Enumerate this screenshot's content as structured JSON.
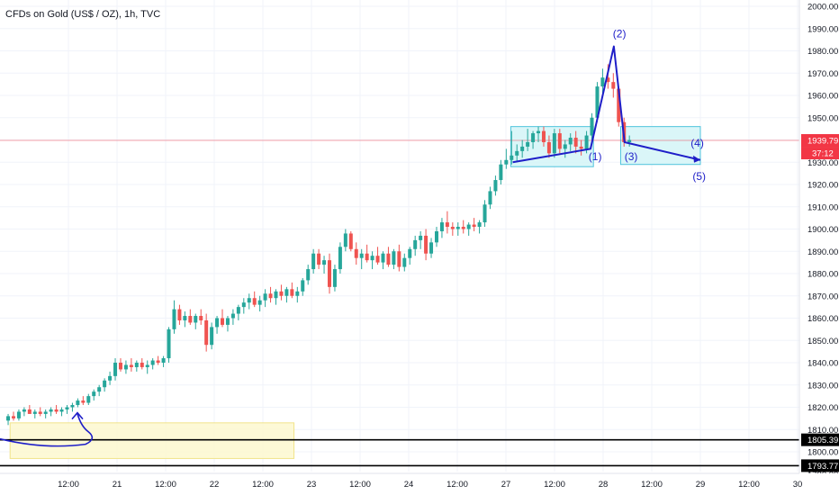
{
  "header": {
    "title": "CFDs on Gold (US$ / OZ), 1h, TVC"
  },
  "chart_data": {
    "type": "candlestick",
    "title": "CFDs on Gold (US$ / OZ), 1h, TVC",
    "y_ticks": [
      2000,
      1990,
      1980,
      1970,
      1960,
      1950,
      1940,
      1930,
      1920,
      1910,
      1900,
      1890,
      1880,
      1870,
      1860,
      1850,
      1840,
      1830,
      1820,
      1810,
      1800,
      1790
    ],
    "y_tick_labels": [
      "2000.00",
      "1990.00",
      "1980.00",
      "1970.00",
      "1960.00",
      "1950.00",
      "1940.00",
      "1930.00",
      "1920.00",
      "1910.00",
      "1900.00",
      "1890.00",
      "1880.00",
      "1870.00",
      "1860.00",
      "1850.00",
      "1840.00",
      "1830.00",
      "1820.00",
      "1810.00",
      "1800.00",
      "1790.00"
    ],
    "ylim": [
      1787,
      2008
    ],
    "x_ticks": [
      {
        "t": 0.5,
        "label": "12:00"
      },
      {
        "t": 1.0,
        "label": "21"
      },
      {
        "t": 1.5,
        "label": "12:00"
      },
      {
        "t": 2.0,
        "label": "22"
      },
      {
        "t": 2.5,
        "label": "12:00"
      },
      {
        "t": 3.0,
        "label": "23"
      },
      {
        "t": 3.5,
        "label": "12:00"
      },
      {
        "t": 4.0,
        "label": "24"
      },
      {
        "t": 4.5,
        "label": "12:00"
      },
      {
        "t": 5.0,
        "label": "27"
      },
      {
        "t": 5.5,
        "label": "12:00"
      },
      {
        "t": 6.0,
        "label": "28"
      },
      {
        "t": 6.5,
        "label": "12:00"
      },
      {
        "t": 7.0,
        "label": "29"
      },
      {
        "t": 7.5,
        "label": "12:00"
      },
      {
        "t": 8.0,
        "label": "30"
      },
      {
        "t": 8.5,
        "label": "12:00"
      }
    ],
    "price_levels": [
      {
        "value": 1939.79,
        "label": "1939.79",
        "color": "#f23645",
        "style": "thin"
      },
      {
        "value": 1805.39,
        "label": "1805.39",
        "color": "#000000",
        "style": "thick"
      },
      {
        "value": 1793.77,
        "label": "1793.77",
        "color": "#000000",
        "style": "thick"
      }
    ],
    "countdown_label": "37:12",
    "candles": [
      {
        "o": 1814,
        "h": 1817,
        "l": 1812,
        "c": 1816
      },
      {
        "o": 1816,
        "h": 1818,
        "l": 1814,
        "c": 1815
      },
      {
        "o": 1815,
        "h": 1819,
        "l": 1814,
        "c": 1818
      },
      {
        "o": 1818,
        "h": 1820,
        "l": 1816,
        "c": 1819
      },
      {
        "o": 1819,
        "h": 1821,
        "l": 1817,
        "c": 1817
      },
      {
        "o": 1817,
        "h": 1819,
        "l": 1815,
        "c": 1818
      },
      {
        "o": 1818,
        "h": 1820,
        "l": 1816,
        "c": 1817
      },
      {
        "o": 1817,
        "h": 1819,
        "l": 1815,
        "c": 1818
      },
      {
        "o": 1818,
        "h": 1820,
        "l": 1816,
        "c": 1819
      },
      {
        "o": 1819,
        "h": 1821,
        "l": 1817,
        "c": 1818
      },
      {
        "o": 1818,
        "h": 1820,
        "l": 1816,
        "c": 1819
      },
      {
        "o": 1819,
        "h": 1821,
        "l": 1817,
        "c": 1820
      },
      {
        "o": 1820,
        "h": 1822,
        "l": 1818,
        "c": 1821
      },
      {
        "o": 1821,
        "h": 1824,
        "l": 1820,
        "c": 1823
      },
      {
        "o": 1823,
        "h": 1825,
        "l": 1821,
        "c": 1822
      },
      {
        "o": 1822,
        "h": 1826,
        "l": 1821,
        "c": 1825
      },
      {
        "o": 1825,
        "h": 1828,
        "l": 1823,
        "c": 1827
      },
      {
        "o": 1827,
        "h": 1830,
        "l": 1825,
        "c": 1829
      },
      {
        "o": 1829,
        "h": 1833,
        "l": 1827,
        "c": 1832
      },
      {
        "o": 1832,
        "h": 1836,
        "l": 1830,
        "c": 1834
      },
      {
        "o": 1834,
        "h": 1842,
        "l": 1832,
        "c": 1840
      },
      {
        "o": 1840,
        "h": 1842,
        "l": 1836,
        "c": 1837
      },
      {
        "o": 1837,
        "h": 1841,
        "l": 1835,
        "c": 1839
      },
      {
        "o": 1839,
        "h": 1842,
        "l": 1836,
        "c": 1838
      },
      {
        "o": 1838,
        "h": 1841,
        "l": 1836,
        "c": 1840
      },
      {
        "o": 1840,
        "h": 1842,
        "l": 1837,
        "c": 1838
      },
      {
        "o": 1838,
        "h": 1841,
        "l": 1835,
        "c": 1839
      },
      {
        "o": 1839,
        "h": 1842,
        "l": 1837,
        "c": 1841
      },
      {
        "o": 1841,
        "h": 1843,
        "l": 1839,
        "c": 1840
      },
      {
        "o": 1840,
        "h": 1843,
        "l": 1838,
        "c": 1842
      },
      {
        "o": 1842,
        "h": 1856,
        "l": 1840,
        "c": 1855
      },
      {
        "o": 1855,
        "h": 1868,
        "l": 1853,
        "c": 1864
      },
      {
        "o": 1864,
        "h": 1866,
        "l": 1857,
        "c": 1859
      },
      {
        "o": 1859,
        "h": 1863,
        "l": 1856,
        "c": 1861
      },
      {
        "o": 1861,
        "h": 1864,
        "l": 1857,
        "c": 1858
      },
      {
        "o": 1858,
        "h": 1862,
        "l": 1855,
        "c": 1861
      },
      {
        "o": 1861,
        "h": 1864,
        "l": 1857,
        "c": 1859
      },
      {
        "o": 1859,
        "h": 1862,
        "l": 1845,
        "c": 1848
      },
      {
        "o": 1848,
        "h": 1858,
        "l": 1846,
        "c": 1856
      },
      {
        "o": 1856,
        "h": 1861,
        "l": 1853,
        "c": 1860
      },
      {
        "o": 1860,
        "h": 1864,
        "l": 1856,
        "c": 1857
      },
      {
        "o": 1857,
        "h": 1861,
        "l": 1854,
        "c": 1860
      },
      {
        "o": 1860,
        "h": 1864,
        "l": 1857,
        "c": 1862
      },
      {
        "o": 1862,
        "h": 1866,
        "l": 1859,
        "c": 1865
      },
      {
        "o": 1865,
        "h": 1869,
        "l": 1862,
        "c": 1867
      },
      {
        "o": 1867,
        "h": 1871,
        "l": 1864,
        "c": 1869
      },
      {
        "o": 1869,
        "h": 1872,
        "l": 1865,
        "c": 1866
      },
      {
        "o": 1866,
        "h": 1870,
        "l": 1863,
        "c": 1868
      },
      {
        "o": 1868,
        "h": 1873,
        "l": 1865,
        "c": 1871
      },
      {
        "o": 1871,
        "h": 1874,
        "l": 1867,
        "c": 1869
      },
      {
        "o": 1869,
        "h": 1873,
        "l": 1866,
        "c": 1872
      },
      {
        "o": 1872,
        "h": 1875,
        "l": 1868,
        "c": 1870
      },
      {
        "o": 1870,
        "h": 1874,
        "l": 1867,
        "c": 1873
      },
      {
        "o": 1873,
        "h": 1876,
        "l": 1869,
        "c": 1870
      },
      {
        "o": 1870,
        "h": 1874,
        "l": 1867,
        "c": 1872
      },
      {
        "o": 1872,
        "h": 1878,
        "l": 1870,
        "c": 1877
      },
      {
        "o": 1877,
        "h": 1884,
        "l": 1875,
        "c": 1882
      },
      {
        "o": 1882,
        "h": 1891,
        "l": 1880,
        "c": 1889
      },
      {
        "o": 1889,
        "h": 1891,
        "l": 1882,
        "c": 1884
      },
      {
        "o": 1884,
        "h": 1888,
        "l": 1880,
        "c": 1886
      },
      {
        "o": 1886,
        "h": 1889,
        "l": 1871,
        "c": 1874
      },
      {
        "o": 1874,
        "h": 1884,
        "l": 1872,
        "c": 1882
      },
      {
        "o": 1882,
        "h": 1894,
        "l": 1880,
        "c": 1892
      },
      {
        "o": 1892,
        "h": 1900,
        "l": 1890,
        "c": 1898
      },
      {
        "o": 1898,
        "h": 1899,
        "l": 1890,
        "c": 1891
      },
      {
        "o": 1891,
        "h": 1894,
        "l": 1884,
        "c": 1887
      },
      {
        "o": 1887,
        "h": 1891,
        "l": 1882,
        "c": 1889
      },
      {
        "o": 1889,
        "h": 1893,
        "l": 1885,
        "c": 1886
      },
      {
        "o": 1886,
        "h": 1890,
        "l": 1882,
        "c": 1888
      },
      {
        "o": 1888,
        "h": 1892,
        "l": 1884,
        "c": 1885
      },
      {
        "o": 1885,
        "h": 1890,
        "l": 1882,
        "c": 1889
      },
      {
        "o": 1889,
        "h": 1892,
        "l": 1883,
        "c": 1884
      },
      {
        "o": 1884,
        "h": 1891,
        "l": 1882,
        "c": 1890
      },
      {
        "o": 1890,
        "h": 1893,
        "l": 1881,
        "c": 1883
      },
      {
        "o": 1883,
        "h": 1889,
        "l": 1881,
        "c": 1887
      },
      {
        "o": 1887,
        "h": 1892,
        "l": 1884,
        "c": 1891
      },
      {
        "o": 1891,
        "h": 1897,
        "l": 1888,
        "c": 1895
      },
      {
        "o": 1895,
        "h": 1899,
        "l": 1891,
        "c": 1897
      },
      {
        "o": 1897,
        "h": 1900,
        "l": 1886,
        "c": 1889
      },
      {
        "o": 1889,
        "h": 1896,
        "l": 1887,
        "c": 1894
      },
      {
        "o": 1894,
        "h": 1901,
        "l": 1892,
        "c": 1899
      },
      {
        "o": 1899,
        "h": 1905,
        "l": 1896,
        "c": 1903
      },
      {
        "o": 1903,
        "h": 1908,
        "l": 1898,
        "c": 1901
      },
      {
        "o": 1901,
        "h": 1903,
        "l": 1897,
        "c": 1900
      },
      {
        "o": 1900,
        "h": 1903,
        "l": 1897,
        "c": 1901
      },
      {
        "o": 1901,
        "h": 1904,
        "l": 1898,
        "c": 1900
      },
      {
        "o": 1900,
        "h": 1903,
        "l": 1897,
        "c": 1902
      },
      {
        "o": 1902,
        "h": 1905,
        "l": 1899,
        "c": 1901
      },
      {
        "o": 1901,
        "h": 1904,
        "l": 1898,
        "c": 1903
      },
      {
        "o": 1903,
        "h": 1913,
        "l": 1901,
        "c": 1911
      },
      {
        "o": 1911,
        "h": 1919,
        "l": 1909,
        "c": 1917
      },
      {
        "o": 1917,
        "h": 1924,
        "l": 1915,
        "c": 1922
      },
      {
        "o": 1922,
        "h": 1931,
        "l": 1920,
        "c": 1929
      },
      {
        "o": 1929,
        "h": 1936,
        "l": 1927,
        "c": 1931
      },
      {
        "o": 1931,
        "h": 1944,
        "l": 1929,
        "c": 1933
      },
      {
        "o": 1933,
        "h": 1938,
        "l": 1930,
        "c": 1935
      },
      {
        "o": 1935,
        "h": 1940,
        "l": 1932,
        "c": 1937
      },
      {
        "o": 1937,
        "h": 1945,
        "l": 1935,
        "c": 1939
      },
      {
        "o": 1939,
        "h": 1944,
        "l": 1936,
        "c": 1943
      },
      {
        "o": 1943,
        "h": 1946,
        "l": 1939,
        "c": 1944
      },
      {
        "o": 1944,
        "h": 1946,
        "l": 1937,
        "c": 1939
      },
      {
        "o": 1939,
        "h": 1942,
        "l": 1932,
        "c": 1934
      },
      {
        "o": 1934,
        "h": 1945,
        "l": 1932,
        "c": 1943
      },
      {
        "o": 1943,
        "h": 1945,
        "l": 1934,
        "c": 1936
      },
      {
        "o": 1936,
        "h": 1940,
        "l": 1932,
        "c": 1938
      },
      {
        "o": 1938,
        "h": 1943,
        "l": 1935,
        "c": 1941
      },
      {
        "o": 1941,
        "h": 1944,
        "l": 1934,
        "c": 1937
      },
      {
        "o": 1937,
        "h": 1940,
        "l": 1933,
        "c": 1936
      },
      {
        "o": 1936,
        "h": 1944,
        "l": 1934,
        "c": 1942
      },
      {
        "o": 1942,
        "h": 1952,
        "l": 1940,
        "c": 1950
      },
      {
        "o": 1950,
        "h": 1966,
        "l": 1948,
        "c": 1964
      },
      {
        "o": 1964,
        "h": 1972,
        "l": 1961,
        "c": 1968
      },
      {
        "o": 1968,
        "h": 1974,
        "l": 1963,
        "c": 1966
      },
      {
        "o": 1966,
        "h": 1970,
        "l": 1959,
        "c": 1963
      },
      {
        "o": 1963,
        "h": 1964,
        "l": 1946,
        "c": 1948
      },
      {
        "o": 1948,
        "h": 1950,
        "l": 1937,
        "c": 1939
      },
      {
        "o": 1939,
        "h": 1942,
        "l": 1937,
        "c": 1940
      }
    ],
    "annotations": [
      {
        "label": "(1)",
        "t": 5.85,
        "v": 1931
      },
      {
        "label": "(2)",
        "t": 6.1,
        "v": 1986
      },
      {
        "label": "(3)",
        "t": 6.22,
        "v": 1931
      },
      {
        "label": "(4)",
        "t": 6.9,
        "v": 1937
      },
      {
        "label": "(5)",
        "t": 6.92,
        "v": 1922
      }
    ],
    "wave_points": [
      {
        "t": 5.07,
        "v": 1930
      },
      {
        "t": 5.87,
        "v": 1936
      },
      {
        "t": 6.11,
        "v": 1982
      },
      {
        "t": 6.22,
        "v": 1939
      },
      {
        "t": 7.0,
        "v": 1931
      }
    ],
    "zones": [
      {
        "t0": 5.05,
        "t1": 5.9,
        "v0": 1928,
        "v1": 1946,
        "fill": "#d4f4f7",
        "stroke": "#4fc3dc"
      },
      {
        "t0": 6.18,
        "t1": 7.0,
        "v0": 1929,
        "v1": 1946,
        "fill": "#d4f4f7",
        "stroke": "#4fc3dc"
      },
      {
        "t0": -0.1,
        "t1": 2.82,
        "v0": 1797,
        "v1": 1813,
        "fill": "#fdf8cf",
        "stroke": "#f1e38a"
      }
    ],
    "colors": {
      "up": "#26a69a",
      "down": "#ef5350",
      "wave": "#1e1ec8",
      "axis_text": "#131722",
      "grid": "#f0f3fa"
    },
    "grid": true
  }
}
